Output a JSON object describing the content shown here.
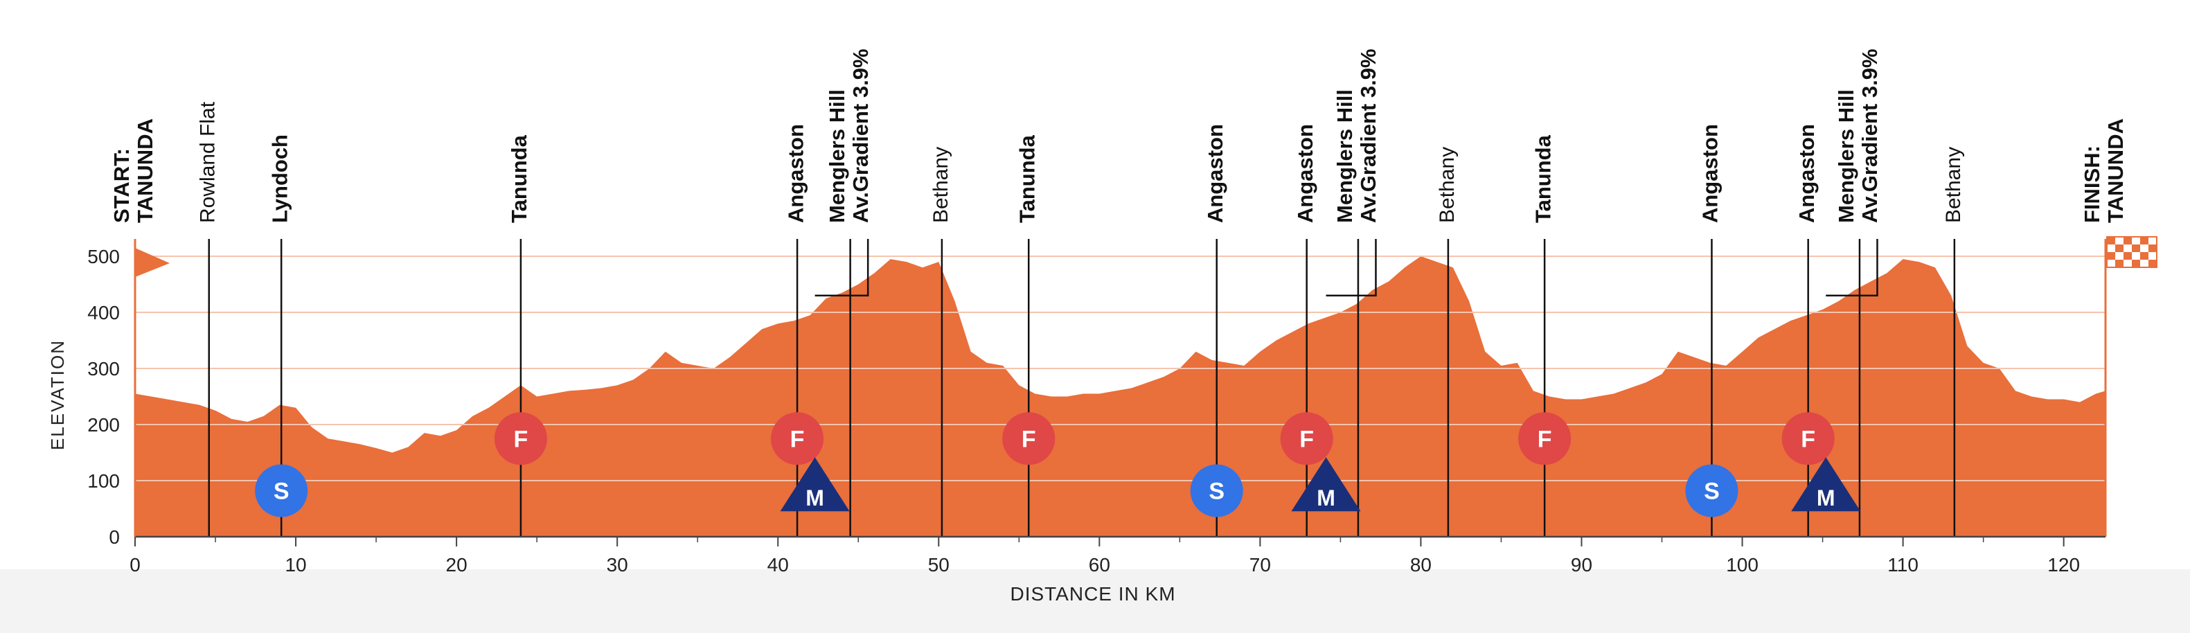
{
  "chart_data": {
    "type": "area",
    "title": "",
    "xlabel": "DISTANCE IN KM",
    "ylabel": "ELEVATION",
    "xlim": [
      0,
      122.6
    ],
    "ylim": [
      0,
      500
    ],
    "x_ticks": [
      0,
      10,
      20,
      30,
      40,
      50,
      60,
      70,
      80,
      90,
      100,
      110,
      120
    ],
    "y_ticks": [
      0,
      100,
      200,
      300,
      400,
      500
    ],
    "grid": true,
    "colors": {
      "fill": "#e96f3b",
      "grid": "#f6c4ad",
      "sprint": "#3273e6",
      "feed": "#e04747",
      "kom": "#1a2f7a",
      "axis": "#444444"
    },
    "profile": {
      "x": [
        0,
        1,
        2,
        3,
        4,
        5,
        6,
        7,
        8,
        9,
        10,
        11,
        12,
        13,
        14,
        15,
        16,
        17,
        18,
        19,
        20,
        21,
        22,
        23,
        24,
        25,
        26,
        27,
        28,
        29,
        30,
        31,
        32,
        33,
        34,
        35,
        36,
        37,
        38,
        39,
        40,
        41,
        42,
        43,
        44,
        45,
        46,
        47,
        48,
        49,
        50,
        51,
        52,
        53,
        54,
        55,
        56,
        57,
        58,
        59,
        60,
        61,
        62,
        63,
        64,
        65,
        66,
        67,
        68,
        69,
        70,
        71,
        72,
        73,
        74,
        75,
        76,
        77,
        78,
        79,
        80,
        81,
        82,
        83,
        84,
        85,
        86,
        87,
        88,
        89,
        90,
        91,
        92,
        93,
        94,
        95,
        96,
        97,
        98,
        99,
        100,
        101,
        102,
        103,
        104,
        105,
        106,
        107,
        108,
        109,
        110,
        111,
        112,
        113,
        114,
        115,
        116,
        117,
        118,
        119,
        120,
        121,
        122,
        122.6
      ],
      "y": [
        255,
        250,
        245,
        240,
        235,
        225,
        210,
        205,
        215,
        235,
        230,
        195,
        175,
        170,
        165,
        158,
        150,
        160,
        185,
        180,
        190,
        215,
        230,
        250,
        270,
        250,
        255,
        260,
        262,
        265,
        270,
        280,
        300,
        330,
        310,
        305,
        300,
        320,
        345,
        370,
        380,
        385,
        395,
        425,
        435,
        450,
        470,
        495,
        490,
        480,
        490,
        420,
        330,
        310,
        305,
        270,
        255,
        250,
        250,
        255,
        255,
        260,
        265,
        275,
        285,
        300,
        330,
        315,
        310,
        305,
        330,
        350,
        365,
        380,
        390,
        400,
        415,
        440,
        455,
        480,
        500,
        490,
        480,
        420,
        330,
        305,
        310,
        260,
        250,
        245,
        245,
        250,
        255,
        265,
        275,
        290,
        330,
        320,
        310,
        305,
        330,
        355,
        370,
        385,
        395,
        405,
        420,
        440,
        455,
        470,
        495,
        490,
        480,
        430,
        340,
        310,
        300,
        260,
        250,
        245,
        245,
        240,
        255,
        260
      ]
    },
    "waypoints": [
      {
        "km": 0,
        "label": "START:",
        "label2": "TANUNDA",
        "bold": true
      },
      {
        "km": 4.6,
        "label": "Rowland Flat",
        "bold": false
      },
      {
        "km": 9.1,
        "label": "Lyndoch",
        "bold": true
      },
      {
        "km": 24,
        "label": "Tanunda",
        "bold": true
      },
      {
        "km": 41.2,
        "label": "Angaston",
        "bold": true
      },
      {
        "km": 44.5,
        "label": "Menglers Hill",
        "label2": "Av.Gradient 3.9%",
        "bold": true
      },
      {
        "km": 50.2,
        "label": "Bethany",
        "bold": false
      },
      {
        "km": 55.6,
        "label": "Tanunda",
        "bold": true
      },
      {
        "km": 67.3,
        "label": "Angaston",
        "bold": true
      },
      {
        "km": 72.9,
        "label": "Angaston",
        "bold": true
      },
      {
        "km": 76.1,
        "label": "Menglers Hill",
        "label2": "Av.Gradient 3.9%",
        "bold": true
      },
      {
        "km": 81.7,
        "label": "Bethany",
        "bold": false
      },
      {
        "km": 87.7,
        "label": "Tanunda",
        "bold": true
      },
      {
        "km": 98.1,
        "label": "Angaston",
        "bold": true
      },
      {
        "km": 104.1,
        "label": "Angaston",
        "bold": true
      },
      {
        "km": 107.3,
        "label": "Menglers Hill",
        "label2": "Av.Gradient 3.9%",
        "bold": true
      },
      {
        "km": 113.2,
        "label": "Bethany",
        "bold": false
      },
      {
        "km": 122.6,
        "label": "FINISH:",
        "label2": "TANUNDA",
        "bold": true
      }
    ],
    "markers": [
      {
        "type": "sprint",
        "km": 9.1,
        "elev": 82,
        "letter": "S"
      },
      {
        "type": "sprint",
        "km": 67.3,
        "elev": 82,
        "letter": "S"
      },
      {
        "type": "sprint",
        "km": 98.1,
        "elev": 82,
        "letter": "S"
      },
      {
        "type": "feed",
        "km": 24,
        "elev": 175,
        "letter": "F"
      },
      {
        "type": "feed",
        "km": 41.2,
        "elev": 175,
        "letter": "F"
      },
      {
        "type": "feed",
        "km": 55.6,
        "elev": 175,
        "letter": "F"
      },
      {
        "type": "feed",
        "km": 72.9,
        "elev": 175,
        "letter": "F"
      },
      {
        "type": "feed",
        "km": 87.7,
        "elev": 175,
        "letter": "F"
      },
      {
        "type": "feed",
        "km": 104.1,
        "elev": 175,
        "letter": "F"
      },
      {
        "type": "kom",
        "km": 42.3,
        "elev": 80,
        "letter": "M"
      },
      {
        "type": "kom",
        "km": 74.1,
        "elev": 80,
        "letter": "M"
      },
      {
        "type": "kom",
        "km": 105.2,
        "elev": 80,
        "letter": "M"
      }
    ],
    "kom_connectors": [
      {
        "base_km": 42.3,
        "base_elev": 430,
        "top_km": 45.6,
        "top_elev": 430
      },
      {
        "base_km": 74.1,
        "base_elev": 430,
        "top_km": 77.2,
        "top_elev": 430
      },
      {
        "base_km": 105.2,
        "base_elev": 430,
        "top_km": 108.4,
        "top_elev": 430
      }
    ],
    "start_flag_icon": "start-pennant-icon",
    "finish_flag_icon": "checkered-flag-icon"
  }
}
